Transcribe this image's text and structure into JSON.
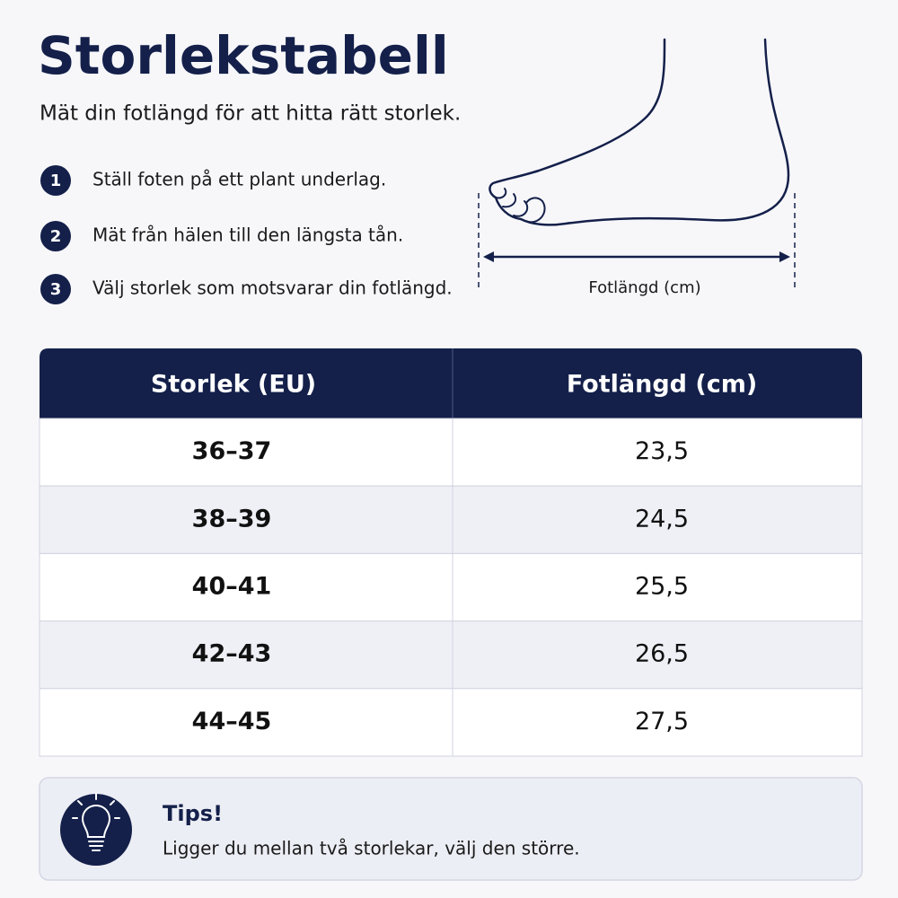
{
  "header": {
    "title": "Storlekstabell",
    "subtitle": "Mät din fotlängd för att hitta rätt storlek."
  },
  "steps": [
    {
      "number": "1",
      "text": "Ställ foten på ett plant underlag."
    },
    {
      "number": "2",
      "text": "Mät från hälen till den längsta tån."
    },
    {
      "number": "3",
      "text": "Välj storlek som motsvarar din fotlängd."
    }
  ],
  "diagram": {
    "label": "Fotlängd (cm)"
  },
  "table": {
    "headers": [
      "Storlek (EU)",
      "Fotlängd (cm)"
    ],
    "rows": [
      [
        "36–37",
        "23,5"
      ],
      [
        "38–39",
        "24,5"
      ],
      [
        "40–41",
        "25,5"
      ],
      [
        "42–43",
        "26,5"
      ],
      [
        "44–45",
        "27,5"
      ]
    ]
  },
  "tip": {
    "title": "Tips!",
    "text": "Ligger du mellan två storlekar, välj den större."
  }
}
